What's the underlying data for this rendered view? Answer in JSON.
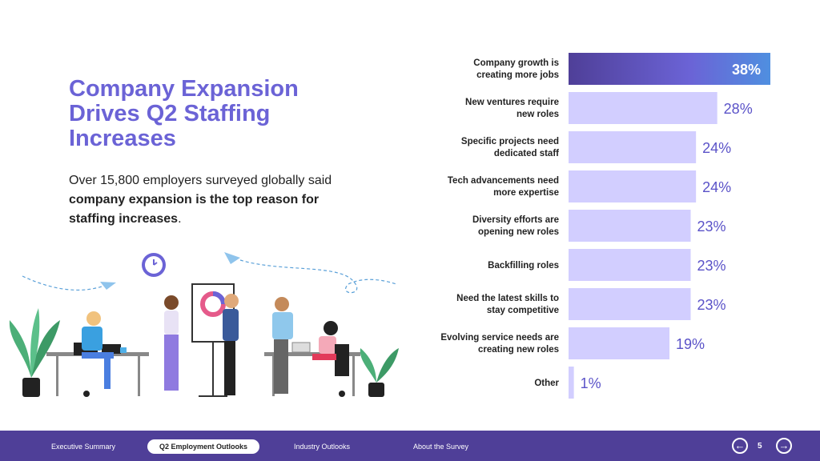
{
  "title": "Company Expansion Drives Q2 Staffing Increases",
  "description": {
    "prefix": "Over 15,800 employers surveyed globally said ",
    "bold": "company expansion is the top reason for staffing increases",
    "suffix": "."
  },
  "colors": {
    "accent": "#6b63d6",
    "bar": "#d2ceff",
    "bar_top_start": "#4f3f98",
    "bar_top_end": "#4f8fe0",
    "footer": "#4f3f98"
  },
  "chart_data": {
    "type": "bar",
    "orientation": "horizontal",
    "categories": [
      [
        "Company growth is",
        "creating more jobs"
      ],
      [
        "New ventures require",
        "new roles"
      ],
      [
        "Specific projects need",
        "dedicated staff"
      ],
      [
        "Tech advancements need",
        "more expertise"
      ],
      [
        "Diversity efforts are",
        "opening new roles"
      ],
      [
        "Backfilling roles"
      ],
      [
        "Need the latest skills to",
        "stay competitive"
      ],
      [
        "Evolving service needs are",
        "creating new roles"
      ],
      [
        "Other"
      ]
    ],
    "values": [
      38,
      28,
      24,
      24,
      23,
      23,
      23,
      19,
      1
    ],
    "value_labels": [
      "38%",
      "28%",
      "24%",
      "24%",
      "23%",
      "23%",
      "23%",
      "19%",
      "1%"
    ],
    "xlim": [
      0,
      38
    ]
  },
  "footer": {
    "nav": [
      "Executive Summary",
      "Q2 Employment Outlooks",
      "Industry Outlooks",
      "About the Survey"
    ],
    "active_index": 1,
    "prev_icon": "arrow-left-icon",
    "next_icon": "arrow-right-icon",
    "page": "5"
  }
}
